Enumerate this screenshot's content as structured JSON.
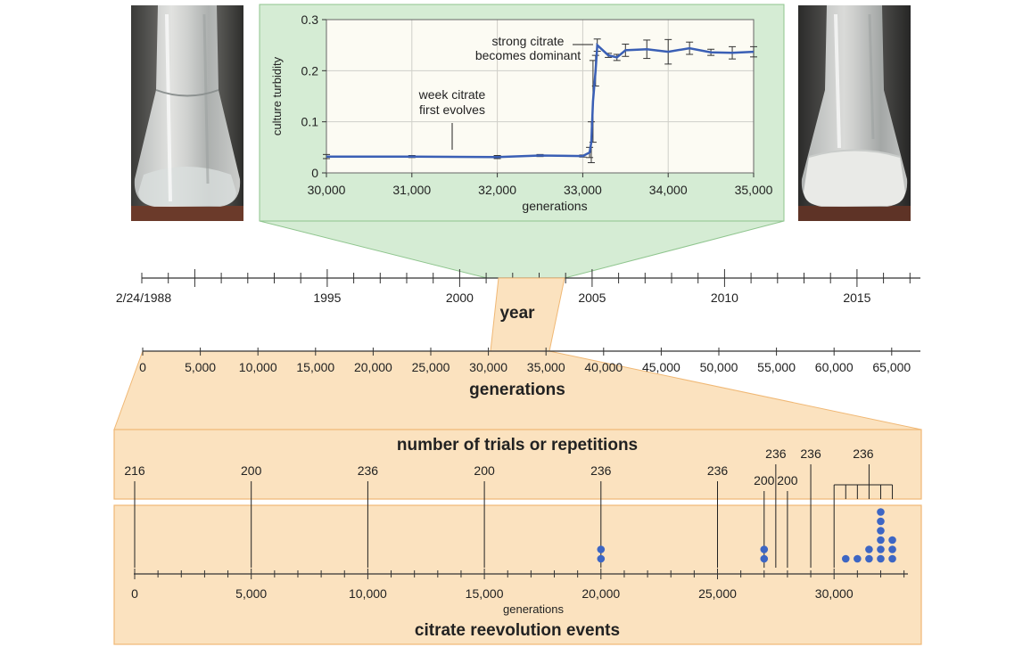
{
  "turbidity_chart": {
    "type": "line",
    "xlabel": "generations",
    "ylabel": "culture turbidity",
    "xlim": [
      30000,
      35000
    ],
    "ylim": [
      0,
      0.3
    ],
    "x_ticks": [
      30000,
      31000,
      32000,
      33000,
      34000,
      35000
    ],
    "x_tick_labels": [
      "30,000",
      "31,000",
      "32,000",
      "33,000",
      "34,000",
      "35,000"
    ],
    "y_ticks": [
      0,
      0.1,
      0.2,
      0.3
    ],
    "y_tick_labels": [
      "0",
      "0.1",
      "0.2",
      "0.3"
    ],
    "annotations": {
      "weak_line1": "week citrate",
      "weak_line2": "first evolves",
      "strong_line1": "strong citrate",
      "strong_line2": "becomes dominant"
    },
    "points": [
      {
        "x": 30000,
        "y": 0.032,
        "err": 0.004
      },
      {
        "x": 31000,
        "y": 0.032,
        "err": 0.002
      },
      {
        "x": 32000,
        "y": 0.031,
        "err": 0.003
      },
      {
        "x": 32500,
        "y": 0.034,
        "err": 0.002
      },
      {
        "x": 33000,
        "y": 0.033,
        "err": 0.002
      },
      {
        "x": 33080,
        "y": 0.04,
        "err": 0.01
      },
      {
        "x": 33100,
        "y": 0.06,
        "err": 0.04
      },
      {
        "x": 33120,
        "y": 0.14,
        "err": 0.08
      },
      {
        "x": 33150,
        "y": 0.2,
        "err": 0.03
      },
      {
        "x": 33170,
        "y": 0.25,
        "err": 0.012
      },
      {
        "x": 33300,
        "y": 0.23,
        "err": 0.004
      },
      {
        "x": 33400,
        "y": 0.226,
        "err": 0.006
      },
      {
        "x": 33500,
        "y": 0.24,
        "err": 0.012
      },
      {
        "x": 33750,
        "y": 0.242,
        "err": 0.018
      },
      {
        "x": 34000,
        "y": 0.237,
        "err": 0.024
      },
      {
        "x": 34250,
        "y": 0.244,
        "err": 0.012
      },
      {
        "x": 34500,
        "y": 0.236,
        "err": 0.006
      },
      {
        "x": 34750,
        "y": 0.235,
        "err": 0.012
      },
      {
        "x": 35000,
        "y": 0.237,
        "err": 0.01
      }
    ]
  },
  "year_axis": {
    "label": "year",
    "tick_labels": [
      {
        "year": 1988,
        "text": "2/24/1988"
      },
      {
        "year": 1995,
        "text": "1995"
      },
      {
        "year": 2000,
        "text": "2000"
      },
      {
        "year": 2005,
        "text": "2005"
      },
      {
        "year": 2010,
        "text": "2010"
      },
      {
        "year": 2015,
        "text": "2015"
      }
    ]
  },
  "generations_axis": {
    "label": "generations",
    "tick_labels": [
      "0",
      "5,000",
      "10,000",
      "15,000",
      "20,000",
      "25,000",
      "30,000",
      "35,000",
      "40,000",
      "45,000",
      "50,000",
      "55,000",
      "60,000",
      "65,000"
    ]
  },
  "trials_panel": {
    "title": "number of trials or repetitions"
  },
  "reevolution_panel": {
    "title": "citrate reevolution events",
    "axis_label": "generations",
    "tick_labels": [
      {
        "gen": 0,
        "text": "0"
      },
      {
        "gen": 5000,
        "text": "5,000"
      },
      {
        "gen": 10000,
        "text": "10,000"
      },
      {
        "gen": 15000,
        "text": "15,000"
      },
      {
        "gen": 20000,
        "text": "20,000"
      },
      {
        "gen": 25000,
        "text": "25,000"
      },
      {
        "gen": 30000,
        "text": "30,000"
      }
    ],
    "trials": [
      {
        "gen": 0,
        "count": "216"
      },
      {
        "gen": 5000,
        "count": "200"
      },
      {
        "gen": 10000,
        "count": "236"
      },
      {
        "gen": 15000,
        "count": "200"
      },
      {
        "gen": 20000,
        "count": "236"
      },
      {
        "gen": 25000,
        "count": "236"
      },
      {
        "gen": 27000,
        "count": "200"
      },
      {
        "gen": 27500,
        "count": "236"
      },
      {
        "gen": 28000,
        "count": "200"
      },
      {
        "gen": 29000,
        "count": "236"
      }
    ],
    "group_label": "236",
    "group_gens": [
      30000,
      30500,
      31000,
      31500,
      32000,
      32500
    ],
    "events": [
      {
        "gen": 20000,
        "count": 2
      },
      {
        "gen": 27000,
        "count": 2
      },
      {
        "gen": 30500,
        "count": 1
      },
      {
        "gen": 31000,
        "count": 1
      },
      {
        "gen": 31500,
        "count": 2
      },
      {
        "gen": 32000,
        "count": 6
      },
      {
        "gen": 32500,
        "count": 3
      }
    ]
  },
  "colors": {
    "line_blue": "#3a5fb5",
    "dot_blue": "#3d66c4",
    "green_panel": "#d5ecd4",
    "green_border": "#8fc58e",
    "plot_bg": "#fcfbf3",
    "orange_panel": "#fbe2bf",
    "orange_border": "#f0b875"
  },
  "photos": {
    "left": "flask-clear-image",
    "right": "flask-turbid-image"
  }
}
